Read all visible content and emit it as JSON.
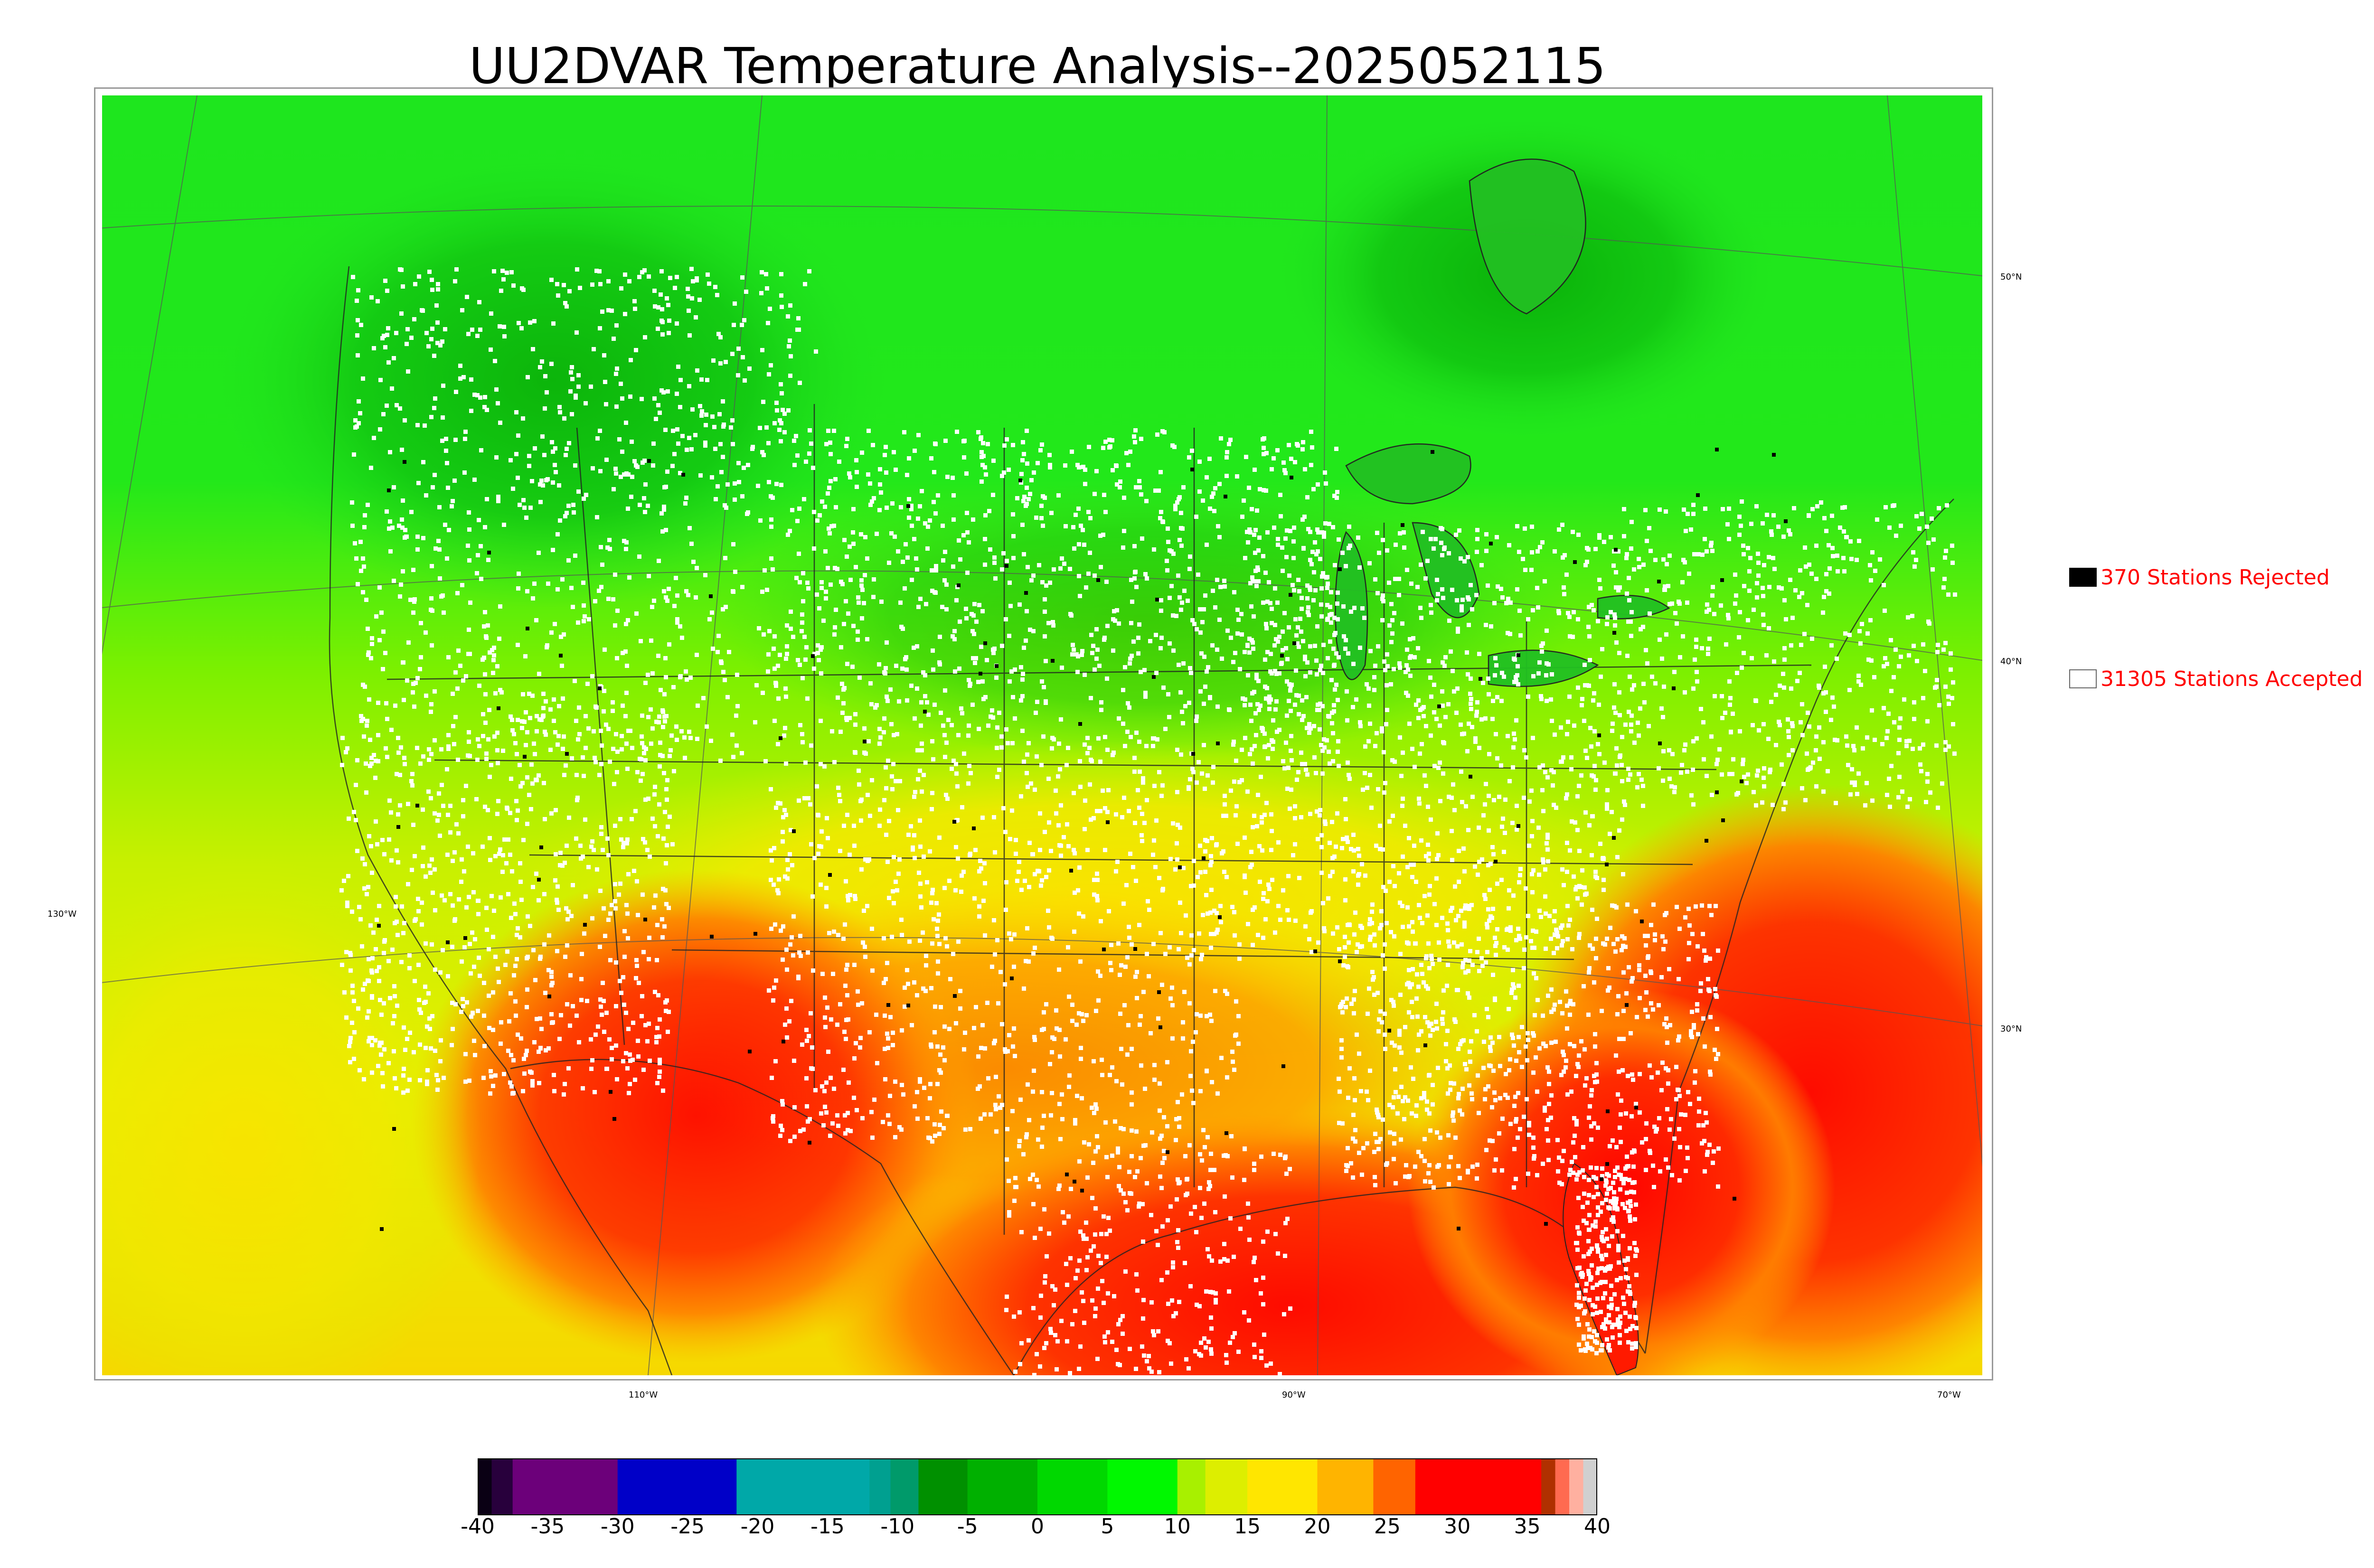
{
  "title": "UU2DVAR Temperature Analysis--2025052115",
  "legend": {
    "rejected": "370 Stations Rejected",
    "accepted": "31305 Stations Accepted"
  },
  "axes": {
    "longitude": [
      "130°W",
      "110°W",
      "90°W",
      "70°W"
    ],
    "latitude": [
      "50°N",
      "40°N",
      "30°N"
    ]
  },
  "colorbar": {
    "ticks": [
      "-40",
      "-35",
      "-30",
      "-25",
      "-20",
      "-15",
      "-10",
      "-5",
      "0",
      "5",
      "10",
      "15",
      "20",
      "25",
      "30",
      "35",
      "40"
    ],
    "min": -40,
    "max": 40,
    "segments": [
      {
        "from": -40,
        "to": -39,
        "color": "#0a0014"
      },
      {
        "from": -39,
        "to": -37.5,
        "color": "#28003c"
      },
      {
        "from": -37.5,
        "to": -30,
        "color": "#6c007a"
      },
      {
        "from": -30,
        "to": -21.5,
        "color": "#0000c8"
      },
      {
        "from": -21.5,
        "to": -12,
        "color": "#00a8a8"
      },
      {
        "from": -12,
        "to": -10.5,
        "color": "#00a090"
      },
      {
        "from": -10.5,
        "to": -8.5,
        "color": "#009a6a"
      },
      {
        "from": -8.5,
        "to": -5,
        "color": "#009000"
      },
      {
        "from": -5,
        "to": 0,
        "color": "#00b000"
      },
      {
        "from": 0,
        "to": 5,
        "color": "#00d800"
      },
      {
        "from": 5,
        "to": 10,
        "color": "#00f800"
      },
      {
        "from": 10,
        "to": 12,
        "color": "#a8f000"
      },
      {
        "from": 12,
        "to": 15,
        "color": "#ddee00"
      },
      {
        "from": 15,
        "to": 20,
        "color": "#ffe600"
      },
      {
        "from": 20,
        "to": 24,
        "color": "#ffb400"
      },
      {
        "from": 24,
        "to": 27,
        "color": "#ff6400"
      },
      {
        "from": 27,
        "to": 36,
        "color": "#ff0000"
      },
      {
        "from": 36,
        "to": 37,
        "color": "#b03000"
      },
      {
        "from": 37,
        "to": 38,
        "color": "#ff6a50"
      },
      {
        "from": 38,
        "to": 39,
        "color": "#ffb0a0"
      },
      {
        "from": 39,
        "to": 40,
        "color": "#d0d0d0"
      }
    ]
  },
  "colors": {
    "rejected_station": "#000000",
    "accepted_station": "#ffffff",
    "legend_text": "#ff0000"
  }
}
